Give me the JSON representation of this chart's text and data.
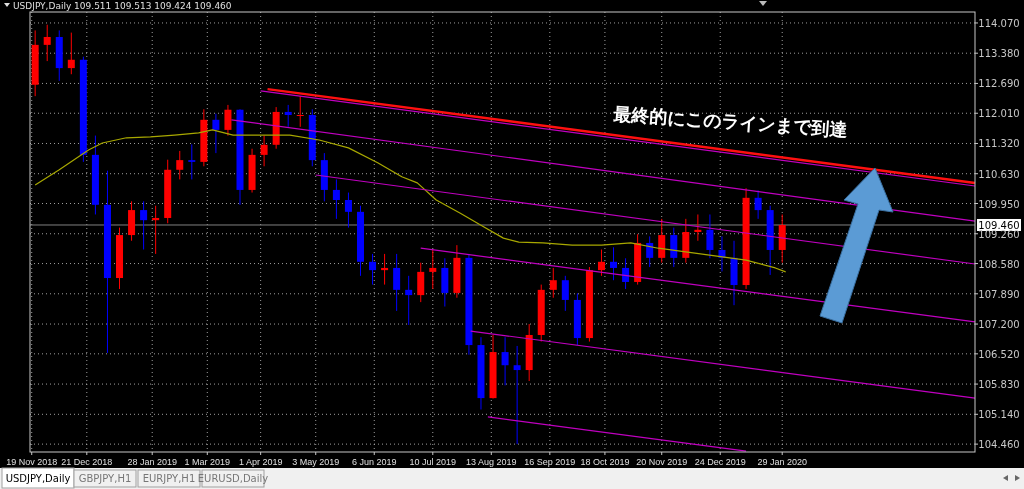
{
  "chart_data": {
    "type": "candlestick",
    "xlim": [
      "2018-11-18",
      "2020-05-20"
    ],
    "xticks": [
      {
        "value": "2018-11-19",
        "label": "19 Nov 2018"
      },
      {
        "value": "2018-12-21",
        "label": "21 Dec 2018"
      },
      {
        "value": "2019-01-28",
        "label": "28 Jan 2019"
      },
      {
        "value": "2019-03-01",
        "label": "1 Mar 2019"
      },
      {
        "value": "2019-04-01",
        "label": "1 Apr 2019"
      },
      {
        "value": "2019-05-03",
        "label": "3 May 2019"
      },
      {
        "value": "2019-06-06",
        "label": "6 Jun 2019"
      },
      {
        "value": "2019-07-10",
        "label": "10 Jul 2019"
      },
      {
        "value": "2019-08-13",
        "label": "13 Aug 2019"
      },
      {
        "value": "2019-09-16",
        "label": "16 Sep 2019"
      },
      {
        "value": "2019-10-18",
        "label": "18 Oct 2019"
      },
      {
        "value": "2019-11-20",
        "label": "20 Nov 2019"
      },
      {
        "value": "2019-12-24",
        "label": "24 Dec 2019"
      },
      {
        "value": "2020-01-29",
        "label": "29 Jan 2020"
      }
    ],
    "ylim": [
      104.28,
      114.32
    ],
    "yticks": [
      {
        "value": 104.46,
        "label": "104.460"
      },
      {
        "value": 105.14,
        "label": "105.140"
      },
      {
        "value": 105.83,
        "label": "105.830"
      },
      {
        "value": 106.52,
        "label": "106.520"
      },
      {
        "value": 107.2,
        "label": "107.200"
      },
      {
        "value": 107.89,
        "label": "107.890"
      },
      {
        "value": 108.58,
        "label": "108.580"
      },
      {
        "value": 109.26,
        "label": "109.260"
      },
      {
        "value": 109.95,
        "label": "109.950"
      },
      {
        "value": 110.63,
        "label": "110.630"
      },
      {
        "value": 111.32,
        "label": "111.320"
      },
      {
        "value": 112.01,
        "label": "112.010"
      },
      {
        "value": 112.69,
        "label": "112.690"
      },
      {
        "value": 113.38,
        "label": "113.380"
      },
      {
        "value": 114.07,
        "label": "114.070"
      }
    ],
    "grid": true,
    "ref_lines": [
      {
        "axis": "y",
        "value": 109.46,
        "label": "109.460",
        "color": "#808080"
      }
    ],
    "annotations": [
      "USDJPY,Daily  109.511 109.513 109.424 109.460",
      "最終的にこのラインまで到達",
      "USDJPY,Daily",
      "GBPJPY,H1",
      "EURJPY,H1",
      "EURUSD,Daily"
    ],
    "series": [
      {
        "x": [
          "2018-11-21",
          "2018-11-28",
          "2018-12-05",
          "2018-12-12",
          "2018-12-19",
          "2018-12-26",
          "2019-01-02",
          "2019-01-09",
          "2019-01-16",
          "2019-01-23",
          "2019-01-30",
          "2019-02-06",
          "2019-02-13",
          "2019-02-20",
          "2019-02-27",
          "2019-03-06",
          "2019-03-13",
          "2019-03-20",
          "2019-03-27",
          "2019-04-03",
          "2019-04-10",
          "2019-04-17",
          "2019-04-24",
          "2019-05-01",
          "2019-05-08",
          "2019-05-15",
          "2019-05-22",
          "2019-05-29",
          "2019-06-05",
          "2019-06-12",
          "2019-06-19",
          "2019-06-26",
          "2019-07-03",
          "2019-07-10",
          "2019-07-17",
          "2019-07-24",
          "2019-07-31",
          "2019-08-07",
          "2019-08-14",
          "2019-08-21",
          "2019-08-28",
          "2019-09-04",
          "2019-09-11",
          "2019-09-18",
          "2019-09-25",
          "2019-10-02",
          "2019-10-09",
          "2019-10-16",
          "2019-10-23",
          "2019-10-30",
          "2019-11-06",
          "2019-11-13",
          "2019-11-20",
          "2019-11-27",
          "2019-12-04",
          "2019-12-11",
          "2019-12-18",
          "2019-12-25",
          "2020-01-01",
          "2020-01-08",
          "2020-01-15",
          "2020-01-22",
          "2020-01-29"
        ],
        "ohlc": [
          [
            112.66,
            113.9,
            112.4,
            113.57
          ],
          [
            113.57,
            114.03,
            113.2,
            113.75
          ],
          [
            113.75,
            113.9,
            112.75,
            113.04
          ],
          [
            113.04,
            113.85,
            112.9,
            113.23
          ],
          [
            113.23,
            113.3,
            110.9,
            111.06
          ],
          [
            111.06,
            111.5,
            109.7,
            109.92
          ],
          [
            109.92,
            110.7,
            106.54,
            108.25
          ],
          [
            108.25,
            109.4,
            108.0,
            109.23
          ],
          [
            109.23,
            110.0,
            109.1,
            109.8
          ],
          [
            109.8,
            110.0,
            108.9,
            109.57
          ],
          [
            109.57,
            109.9,
            108.8,
            109.62
          ],
          [
            109.62,
            110.95,
            109.5,
            110.72
          ],
          [
            110.72,
            111.15,
            110.5,
            110.94
          ],
          [
            110.94,
            111.3,
            110.5,
            110.9
          ],
          [
            110.9,
            112.1,
            110.8,
            111.86
          ],
          [
            111.86,
            112.0,
            111.1,
            111.63
          ],
          [
            111.63,
            112.2,
            111.5,
            112.09
          ],
          [
            112.09,
            112.1,
            109.92,
            110.26
          ],
          [
            110.26,
            111.2,
            110.2,
            111.06
          ],
          [
            111.06,
            111.5,
            110.8,
            111.29
          ],
          [
            111.29,
            112.15,
            111.2,
            112.04
          ],
          [
            112.04,
            112.2,
            111.7,
            111.97
          ],
          [
            111.97,
            112.4,
            111.7,
            111.97
          ],
          [
            111.97,
            112.1,
            110.8,
            110.94
          ],
          [
            110.94,
            111.1,
            110.0,
            110.26
          ],
          [
            110.26,
            110.5,
            109.6,
            110.03
          ],
          [
            110.03,
            110.2,
            109.4,
            109.76
          ],
          [
            109.76,
            109.9,
            108.3,
            108.62
          ],
          [
            108.62,
            108.8,
            108.1,
            108.43
          ],
          [
            108.43,
            108.8,
            108.1,
            108.48
          ],
          [
            108.48,
            108.8,
            107.5,
            107.98
          ],
          [
            107.98,
            108.3,
            107.18,
            107.86
          ],
          [
            107.86,
            108.6,
            107.7,
            108.39
          ],
          [
            108.39,
            108.9,
            108.0,
            108.48
          ],
          [
            108.48,
            108.7,
            107.6,
            107.91
          ],
          [
            107.91,
            109.0,
            107.8,
            108.71
          ],
          [
            108.71,
            108.8,
            106.5,
            106.72
          ],
          [
            106.72,
            106.9,
            105.25,
            105.51
          ],
          [
            105.51,
            106.95,
            105.5,
            106.56
          ],
          [
            106.56,
            106.9,
            105.8,
            106.26
          ],
          [
            106.26,
            106.7,
            104.46,
            106.15
          ],
          [
            106.15,
            107.2,
            105.9,
            106.95
          ],
          [
            106.95,
            108.1,
            106.8,
            107.98
          ],
          [
            107.98,
            108.48,
            107.8,
            108.2
          ],
          [
            108.2,
            108.3,
            107.5,
            107.75
          ],
          [
            107.75,
            107.9,
            106.72,
            106.88
          ],
          [
            106.88,
            108.5,
            106.8,
            108.43
          ],
          [
            108.43,
            108.9,
            108.3,
            108.62
          ],
          [
            108.62,
            108.95,
            108.2,
            108.48
          ],
          [
            108.48,
            108.7,
            108.0,
            108.16
          ],
          [
            108.16,
            109.25,
            108.1,
            109.05
          ],
          [
            109.05,
            109.2,
            108.5,
            108.71
          ],
          [
            108.71,
            109.6,
            108.6,
            109.23
          ],
          [
            109.23,
            109.4,
            108.5,
            108.71
          ],
          [
            108.71,
            109.6,
            108.6,
            109.3
          ],
          [
            109.3,
            109.7,
            109.1,
            109.35
          ],
          [
            109.35,
            109.7,
            108.7,
            108.89
          ],
          [
            108.89,
            109.2,
            108.4,
            108.71
          ],
          [
            108.71,
            109.1,
            107.63,
            108.09
          ],
          [
            108.09,
            110.3,
            108.0,
            110.08
          ],
          [
            110.08,
            110.25,
            109.6,
            109.8
          ],
          [
            109.8,
            109.9,
            108.32,
            108.89
          ],
          [
            108.89,
            109.7,
            108.6,
            109.46
          ]
        ]
      },
      {
        "type": "line",
        "color": "#a8a800",
        "x": [
          "2018-11-21",
          "2018-12-05",
          "2018-12-22",
          "2018-12-30",
          "2019-01-13",
          "2019-01-27",
          "2019-02-10",
          "2019-02-24",
          "2019-03-04",
          "2019-03-16",
          "2019-04-02",
          "2019-04-18",
          "2019-05-05",
          "2019-05-22",
          "2019-06-08",
          "2019-06-22",
          "2019-07-01",
          "2019-07-12",
          "2019-07-26",
          "2019-08-09",
          "2019-08-20",
          "2019-08-29",
          "2019-09-12",
          "2019-09-29",
          "2019-10-16",
          "2019-11-02",
          "2019-11-18",
          "2019-12-05",
          "2019-12-22",
          "2020-01-08",
          "2020-01-25",
          "2020-01-31"
        ],
        "values": [
          110.37,
          110.72,
          111.17,
          111.33,
          111.45,
          111.47,
          111.51,
          111.56,
          111.63,
          111.51,
          111.51,
          111.51,
          111.4,
          111.22,
          110.88,
          110.56,
          110.42,
          110.03,
          109.73,
          109.41,
          109.16,
          109.07,
          109.05,
          109.0,
          109.0,
          109.05,
          108.93,
          108.84,
          108.75,
          108.66,
          108.48,
          108.39
        ]
      },
      {
        "type": "line",
        "color": "#c000c0",
        "x": [
          "2019-04-01",
          "2020-05-20"
        ],
        "values": [
          112.52,
          110.35
        ]
      },
      {
        "type": "line",
        "color": "#ff1010",
        "x": [
          "2019-04-05",
          "2020-05-20"
        ],
        "values": [
          112.56,
          110.42
        ]
      },
      {
        "type": "line",
        "color": "#c000c0",
        "x": [
          "2019-03-15",
          "2020-05-20"
        ],
        "values": [
          111.86,
          109.55
        ]
      },
      {
        "type": "line",
        "color": "#c000c0",
        "x": [
          "2019-05-03",
          "2020-05-20"
        ],
        "values": [
          110.6,
          108.57
        ]
      },
      {
        "type": "line",
        "color": "#c000c0",
        "x": [
          "2019-07-03",
          "2020-05-20"
        ],
        "values": [
          108.93,
          107.25
        ]
      },
      {
        "type": "line",
        "color": "#c000c0",
        "x": [
          "2019-08-01",
          "2020-05-20"
        ],
        "values": [
          107.04,
          105.51
        ]
      },
      {
        "type": "line",
        "color": "#c000c0",
        "x": [
          "2019-08-11",
          "2020-01-08"
        ],
        "values": [
          105.08,
          104.3
        ]
      }
    ]
  }
}
